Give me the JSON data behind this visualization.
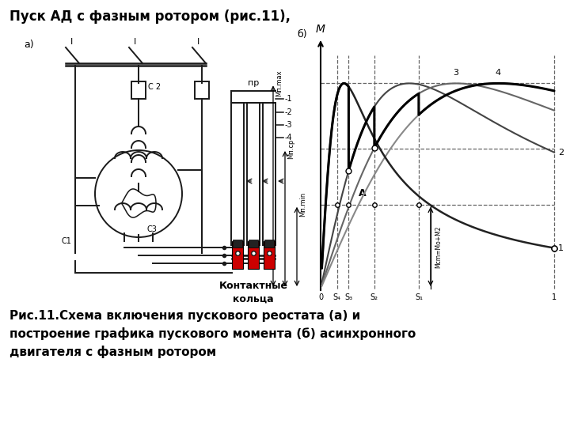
{
  "title_text": "Пуск АД с фазным ротором (рис.11),",
  "caption_text": "Рис.11.Схема включения пускового реостата (а) и\nпостроение графика пускового момента (б) асинхронного\nдвигателя с фазным ротором",
  "label_a": "а)",
  "label_b": "б)",
  "kontakt_text": "Контактные\nкольца",
  "Mn_max": 0.88,
  "Mn_cp": 0.6,
  "Mn_min": 0.36,
  "s4_tick": 0.07,
  "s3_tick": 0.12,
  "s2_tick": 0.23,
  "s1_tick": 0.42,
  "sk1": 0.1,
  "sk2": 0.38,
  "sk3": 0.58,
  "sk4": 0.76,
  "bg_color": "#ffffff",
  "lc": "#1a1a1a",
  "dash_color": "#666666"
}
